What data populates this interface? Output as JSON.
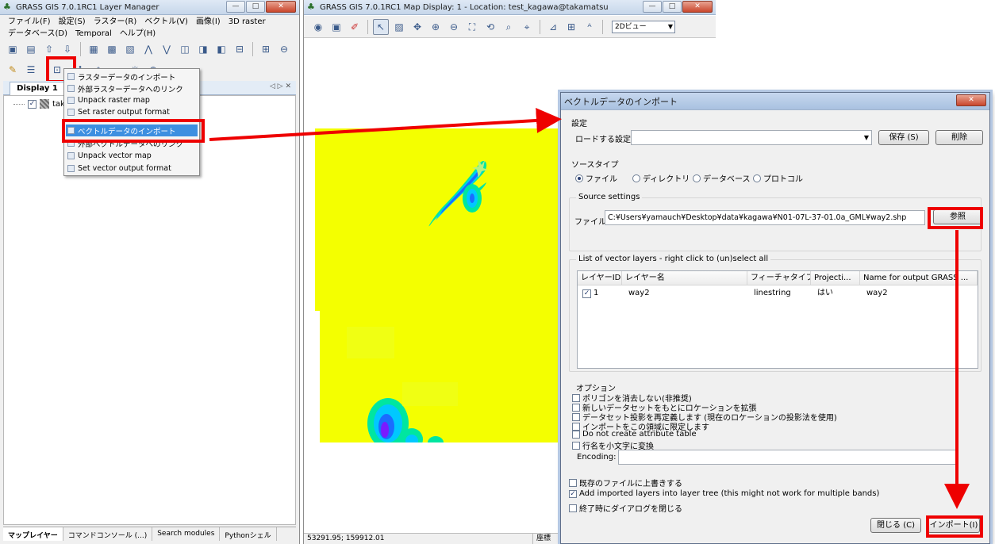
{
  "layer_manager": {
    "title": "GRASS GIS 7.0.1RC1 Layer Manager",
    "menu_row1": [
      "ファイル(F)",
      "設定(S)",
      "ラスター(R)",
      "ベクトル(V)",
      "画像(I)",
      "3D raster"
    ],
    "menu_row2": [
      "データベース(D)",
      "Temporal",
      "ヘルプ(H)"
    ],
    "display_tab": "Display 1",
    "layer_name": "takan",
    "bottom_tabs": [
      "マップレイヤー",
      "コマンドコンソール (...)",
      "Search modules",
      "Pythonシェル"
    ]
  },
  "import_menu": {
    "items": [
      "ラスターデータのインポート",
      "外部ラスターデータへのリンク",
      "Unpack raster map",
      "Set raster output format",
      "ベクトルデータのインポート",
      "外部ベクトルデータへのリンク",
      "Unpack vector map",
      "Set vector output format"
    ],
    "selected_index": 4
  },
  "map_display": {
    "title": "GRASS GIS 7.0.1RC1 Map Display: 1  - Location: test_kagawa@takamatsu",
    "view_mode": "2Dビュー",
    "coordinates": "53291.95; 159912.01",
    "status_right": "座標"
  },
  "dialog": {
    "title": "ベクトルデータのインポート",
    "settings_section": "設定",
    "load_label": "ロードする設定:",
    "load_value": "",
    "save_button": "保存 (S)",
    "delete_button": "削除",
    "source_type_section": "ソースタイプ",
    "source_types": [
      "ファイル",
      "ディレクトリ",
      "データベース",
      "プロトコル"
    ],
    "source_type_selected": "ファイル",
    "source_settings_section": "Source settings",
    "file_label": "ファイル:",
    "file_path": "C:¥Users¥yamauch¥Desktop¥data¥kagawa¥N01-07L-37-01.0a_GML¥way2.shp",
    "browse_button": "参照",
    "layers_section": "List of vector layers - right click to (un)select all",
    "layer_columns": [
      "レイヤーID",
      "レイヤー名",
      "フィーチャタイプ",
      "Projecti...",
      "Name for output GRASS ..."
    ],
    "layer_rows": [
      {
        "checked": true,
        "id": "1",
        "name": "way2",
        "feature_type": "linestring",
        "projection": "はい",
        "output_name": "way2"
      }
    ],
    "options_section": "オプション",
    "options": [
      {
        "label": "ポリゴンを消去しない(非推奨)",
        "checked": false
      },
      {
        "label": "新しいデータセットをもとにロケーションを拡張",
        "checked": false
      },
      {
        "label": "データセット投影を再定義します (現在のロケーションの投影法を使用)",
        "checked": false
      },
      {
        "label": "インポートをこの領域に限定します",
        "checked": false
      },
      {
        "label": "Do not create attribute table",
        "checked": false
      },
      {
        "label": "行名を小文字に変換",
        "checked": false
      }
    ],
    "encoding_label": "Encoding:",
    "encoding_value": "",
    "overwrite_label": "既存のファイルに上書きする",
    "overwrite_checked": false,
    "add_layers_label": "Add imported layers into layer tree (this might not work for multiple bands)",
    "add_layers_checked": true,
    "close_on_finish_label": "終了時にダイアログを閉じる",
    "close_on_finish_checked": false,
    "close_button": "閉じる (C)",
    "import_button": "インポート(I)"
  },
  "colors": {
    "highlight": "#ee0000",
    "map_background": "#f4ff00",
    "menu_selected": "#3d8fe0"
  },
  "icons": [
    "grass-icon",
    "minimize-icon",
    "maximize-icon",
    "close-icon",
    "add-raster-icon",
    "add-vector-icon",
    "import-icon",
    "chevron-down-icon",
    "checkbox-icon",
    "radio-icon"
  ]
}
